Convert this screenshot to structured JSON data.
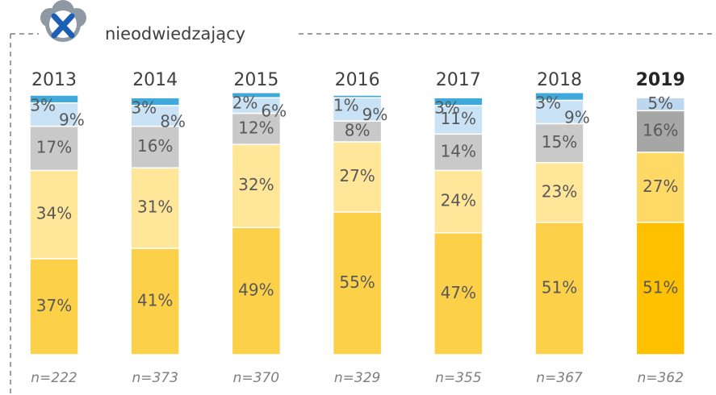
{
  "chart_data": {
    "type": "stacked_bar",
    "legend_label": "nieodwiedzający",
    "categories": [
      "2013",
      "2014",
      "2015",
      "2016",
      "2017",
      "2018",
      "2019"
    ],
    "category_styles": [
      "normal",
      "normal",
      "normal",
      "normal",
      "normal",
      "normal",
      "bold"
    ],
    "sample_sizes": [
      "n=222",
      "n=373",
      "n=370",
      "n=329",
      "n=355",
      "n=367",
      "n=362"
    ],
    "series": [
      {
        "colors": [
          "#fdd04a",
          "#fdd04a",
          "#fdd04a",
          "#fdd04a",
          "#fdd04a",
          "#fdd04a",
          "#ffc000"
        ],
        "values": [
          37,
          41,
          49,
          55,
          47,
          51,
          51
        ],
        "value_labels": [
          "37%",
          "41%",
          "49%",
          "55%",
          "47%",
          "51%",
          "51%"
        ]
      },
      {
        "colors": [
          "#ffe699",
          "#ffe699",
          "#ffe699",
          "#ffe699",
          "#ffe699",
          "#ffe699",
          "#ffd966"
        ],
        "values": [
          34,
          31,
          32,
          27,
          24,
          23,
          27
        ],
        "value_labels": [
          "34%",
          "31%",
          "32%",
          "27%",
          "24%",
          "23%",
          "27%"
        ]
      },
      {
        "colors": [
          "#c9c9c9",
          "#c9c9c9",
          "#c9c9c9",
          "#c9c9c9",
          "#c9c9c9",
          "#c9c9c9",
          "#a6a6a6"
        ],
        "values": [
          17,
          16,
          12,
          8,
          14,
          15,
          16
        ],
        "value_labels": [
          "17%",
          "16%",
          "12%",
          "8%",
          "14%",
          "15%",
          "16%"
        ]
      },
      {
        "colors": [
          "#c9e2f5",
          "#c9e2f5",
          "#c9e2f5",
          "#c9e2f5",
          "#c9e2f5",
          "#c9e2f5",
          "#bdd7ee"
        ],
        "values": [
          9,
          8,
          6,
          9,
          11,
          9,
          5
        ],
        "value_labels": [
          "9%",
          "8%",
          "6%",
          "9%",
          "11%",
          "9%",
          "5%"
        ]
      },
      {
        "colors": [
          "#3fa9dc",
          "#3fa9dc",
          "#3fa9dc",
          "#3fa9dc",
          "#3fa9dc",
          "#3fa9dc",
          "#3fa9dc"
        ],
        "values": [
          3,
          3,
          2,
          1,
          3,
          3,
          null
        ],
        "value_labels": [
          "3%",
          "3%",
          "2%",
          "1%",
          "3%",
          "3%",
          null
        ]
      }
    ]
  }
}
